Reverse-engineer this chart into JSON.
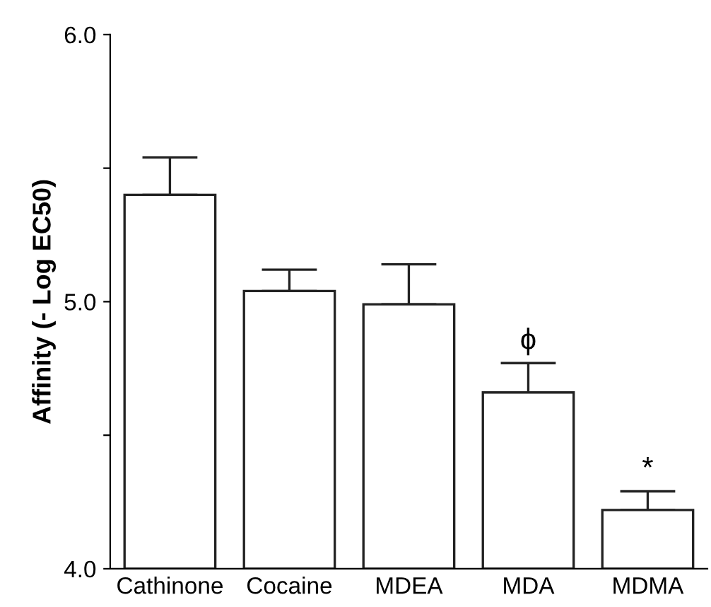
{
  "chart_data": {
    "type": "bar",
    "ylabel": "Affinity (- Log EC50)",
    "categories": [
      "Cathinone",
      "Cocaine",
      "MDEA",
      "MDA",
      "MDMA"
    ],
    "values": [
      5.4,
      5.04,
      4.99,
      4.66,
      4.22
    ],
    "errors": [
      [
        5.4,
        5.54
      ],
      [
        5.04,
        5.12
      ],
      [
        4.99,
        5.14
      ],
      [
        4.66,
        4.77
      ],
      [
        4.22,
        4.29
      ]
    ],
    "color": "#ffffff",
    "ylim": [
      4.0,
      6.0
    ],
    "yticks": [
      {
        "value": 4.0,
        "label": "4.0"
      },
      {
        "value": 4.5,
        "label": null
      },
      {
        "value": 5.0,
        "label": "5.0"
      },
      {
        "value": 5.5,
        "label": null
      },
      {
        "value": 6.0,
        "label": "6.0"
      }
    ],
    "annotations": [
      {
        "text": "ϕ",
        "x": "MDA",
        "y": 4.77
      },
      {
        "text": "*",
        "x": "MDMA",
        "y": 4.29
      }
    ],
    "grid": false,
    "legend": false
  }
}
